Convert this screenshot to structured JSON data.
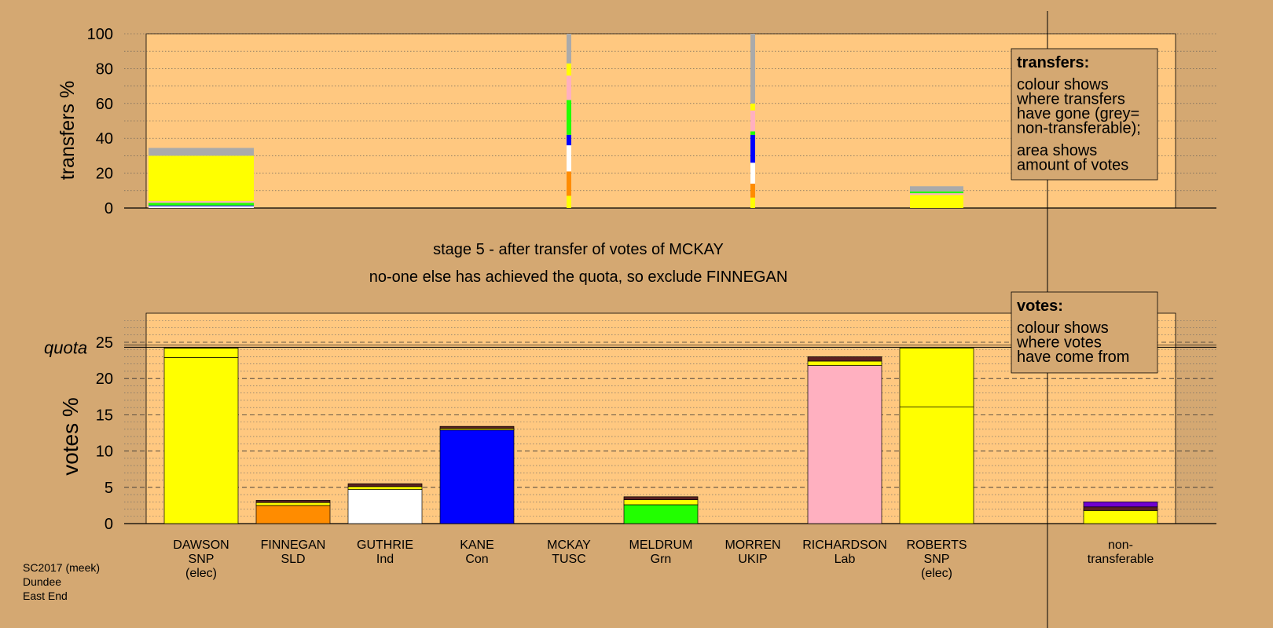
{
  "chart_data": [
    {
      "type": "bar",
      "stacked": true,
      "ylabel": "transfers %",
      "ylim": [
        0,
        100
      ],
      "yticks": [
        0,
        20,
        40,
        60,
        80,
        100
      ],
      "grid": true,
      "legend": {
        "placement": "top-right",
        "title": "transfers:",
        "lines": [
          "colour shows",
          "where transfers",
          "have gone (grey=",
          "non-transferable);",
          "area shows",
          "amount of votes"
        ]
      },
      "bars": [
        {
          "candidate": "DAWSON",
          "segments": [
            {
              "party": "Ind",
              "value": 1
            },
            {
              "party": "Con",
              "value": 0.5
            },
            {
              "party": "Grn",
              "value": 1.5
            },
            {
              "party": "Lab",
              "value": 1
            },
            {
              "party": "SNP",
              "value": 26
            },
            {
              "party": "non-transferable",
              "value": 4.5
            }
          ]
        },
        {
          "candidate": "MCKAY",
          "segments": [
            {
              "party": "SNP",
              "value": 7
            },
            {
              "party": "SLD",
              "value": 14
            },
            {
              "party": "Ind",
              "value": 15
            },
            {
              "party": "Con",
              "value": 6
            },
            {
              "party": "Grn",
              "value": 20
            },
            {
              "party": "Lab",
              "value": 14
            },
            {
              "party": "SNP",
              "value": 7
            },
            {
              "party": "non-transferable",
              "value": 17
            }
          ]
        },
        {
          "candidate": "MORREN",
          "segments": [
            {
              "party": "SNP",
              "value": 6
            },
            {
              "party": "SLD",
              "value": 8
            },
            {
              "party": "Ind",
              "value": 12
            },
            {
              "party": "Con",
              "value": 16
            },
            {
              "party": "Grn",
              "value": 2
            },
            {
              "party": "Lab",
              "value": 12
            },
            {
              "party": "SNP",
              "value": 4
            },
            {
              "party": "non-transferable",
              "value": 40
            }
          ]
        },
        {
          "candidate": "ROBERTS",
          "segments": [
            {
              "party": "SNP",
              "value": 7.5
            },
            {
              "party": "Lab",
              "value": 1
            },
            {
              "party": "Grn",
              "value": 1
            },
            {
              "party": "non-transferable",
              "value": 3
            }
          ]
        }
      ]
    },
    {
      "type": "bar",
      "stacked": true,
      "ylabel": "votes %",
      "ylim": [
        0,
        29
      ],
      "yticks": [
        0,
        5,
        10,
        15,
        20,
        25
      ],
      "quota": 24.3,
      "quota_label": "quota",
      "grid": true,
      "legend": {
        "placement": "top-right",
        "title": "votes:",
        "lines": [
          "colour shows",
          "where votes",
          "have come from"
        ]
      },
      "categories": [
        [
          "DAWSON",
          "SNP",
          "(elec)"
        ],
        [
          "FINNEGAN",
          "SLD"
        ],
        [
          "GUTHRIE",
          "Ind"
        ],
        [
          "KANE",
          "Con"
        ],
        [
          "MCKAY",
          "TUSC"
        ],
        [
          "MELDRUM",
          "Grn"
        ],
        [
          "MORREN",
          "UKIP"
        ],
        [
          "RICHARDSON",
          "Lab"
        ],
        [
          "ROBERTS",
          "SNP",
          "(elec)"
        ],
        [
          "non-",
          "transferable"
        ]
      ],
      "bars": [
        [
          {
            "party": "SNP",
            "value": 22.9
          },
          {
            "party": "SNP",
            "value": 1.3
          },
          {
            "party": "other",
            "value": 0.1
          }
        ],
        [
          {
            "party": "SLD",
            "value": 2.5
          },
          {
            "party": "SNP",
            "value": 0.4
          },
          {
            "party": "other",
            "value": 0.3
          }
        ],
        [
          {
            "party": "Ind",
            "value": 4.7
          },
          {
            "party": "SNP",
            "value": 0.4
          },
          {
            "party": "other",
            "value": 0.4
          }
        ],
        [
          {
            "party": "Con",
            "value": 12.9
          },
          {
            "party": "SNP",
            "value": 0.2
          },
          {
            "party": "other",
            "value": 0.3
          }
        ],
        [],
        [
          {
            "party": "Grn",
            "value": 2.6
          },
          {
            "party": "SNP",
            "value": 0.7
          },
          {
            "party": "other",
            "value": 0.4
          }
        ],
        [],
        [
          {
            "party": "Lab",
            "value": 21.8
          },
          {
            "party": "SNP",
            "value": 0.6
          },
          {
            "party": "other",
            "value": 0.6
          }
        ],
        [
          {
            "party": "SNP",
            "value": 16.1
          },
          {
            "party": "SNP",
            "value": 8.1
          }
        ],
        [
          {
            "party": "SNP",
            "value": 1.8
          },
          {
            "party": "other",
            "value": 0.5
          },
          {
            "party": "TUSC",
            "value": 0.7
          }
        ]
      ]
    }
  ],
  "party_colors": {
    "SNP": "#ffff00",
    "SLD": "#ff8c00",
    "Ind": "#ffffff",
    "Con": "#0000ff",
    "Grn": "#22ff00",
    "Lab": "#ffb0c0",
    "TUSC": "#7000d0",
    "other": "#5a2020",
    "non-transferable": "#aaaaaa"
  },
  "stage_text": "stage 5 - after transfer of votes of MCKAY",
  "action_text": "no-one else has achieved the quota, so exclude FINNEGAN",
  "footer": [
    "SC2017 (meek)",
    "Dundee",
    "East End"
  ]
}
